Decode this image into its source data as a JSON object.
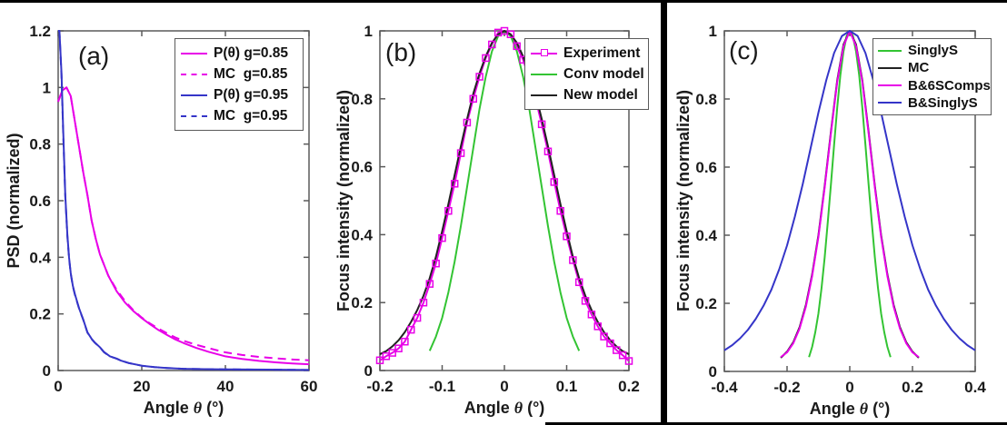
{
  "figure": {
    "background": "#ffffff",
    "axis_color": "#5a5a5a",
    "text_color": "#1a1a1a",
    "divider_color": "#000000",
    "colors": {
      "magenta": "#e800e8",
      "blue": "#3535c8",
      "green": "#33c433",
      "black_curve": "#222222"
    }
  },
  "chart_data": [
    {
      "id": "a",
      "type": "line",
      "panel_label": "(a)",
      "xlabel": "Angle θ (°)",
      "xlabel_prefix": "Angle ",
      "xlabel_symbol": "θ",
      "xlabel_suffix": " (°)",
      "ylabel": "PSD (normalized)",
      "xlim": [
        0,
        60
      ],
      "ylim": [
        0,
        1.2
      ],
      "xticks": [
        0,
        20,
        40,
        60
      ],
      "xtick_labels": [
        "0",
        "20",
        "40",
        "60"
      ],
      "yticks": [
        0,
        0.2,
        0.4,
        0.6,
        0.8,
        1,
        1.2
      ],
      "ytick_labels": [
        "0",
        "0.2",
        "0.4",
        "0.6",
        "0.8",
        "1",
        "1.2"
      ],
      "grid": false,
      "legend_position": "top-right-inside",
      "series": [
        {
          "name": "P(θ) g=0.85",
          "color": "#e800e8",
          "dash": "solid",
          "marker": "none",
          "x": [
            0,
            1,
            2,
            3,
            4,
            5,
            6,
            7,
            8,
            9,
            10,
            12,
            14,
            16,
            18,
            20,
            22,
            24,
            26,
            28,
            30,
            33,
            36,
            40,
            44,
            48,
            52,
            56,
            60
          ],
          "y": [
            0.95,
            0.99,
            1.0,
            0.97,
            0.88,
            0.79,
            0.7,
            0.62,
            0.53,
            0.465,
            0.41,
            0.335,
            0.28,
            0.24,
            0.21,
            0.185,
            0.163,
            0.143,
            0.126,
            0.11,
            0.097,
            0.08,
            0.066,
            0.05,
            0.041,
            0.034,
            0.029,
            0.025,
            0.022
          ]
        },
        {
          "name": "MC  g=0.85",
          "color": "#e800e8",
          "dash": "dashed",
          "marker": "none",
          "x": [
            0,
            1,
            2,
            3,
            4,
            5,
            6,
            7,
            8,
            9,
            10,
            12,
            14,
            16,
            18,
            20,
            22,
            24,
            26,
            28,
            30,
            33,
            36,
            40,
            44,
            48,
            52,
            56,
            60
          ],
          "y": [
            0.95,
            0.99,
            1.0,
            0.97,
            0.88,
            0.79,
            0.7,
            0.62,
            0.53,
            0.465,
            0.41,
            0.335,
            0.285,
            0.245,
            0.213,
            0.187,
            0.166,
            0.148,
            0.132,
            0.117,
            0.105,
            0.091,
            0.079,
            0.064,
            0.055,
            0.048,
            0.043,
            0.039,
            0.036
          ]
        },
        {
          "name": "P(θ) g=0.95",
          "color": "#3535c8",
          "dash": "solid",
          "marker": "none",
          "x": [
            0,
            0.3,
            0.8,
            1.2,
            1.7,
            2.2,
            2.6,
            3,
            3.5,
            4,
            4.5,
            5,
            5.5,
            6,
            7,
            8,
            8.7,
            10,
            11,
            12.4,
            14,
            15,
            17,
            20,
            23,
            26,
            30,
            35,
            40,
            50,
            60
          ],
          "y": [
            1.2,
            1.2,
            1.05,
            0.85,
            0.62,
            0.48,
            0.4,
            0.345,
            0.3,
            0.27,
            0.245,
            0.22,
            0.2,
            0.18,
            0.135,
            0.112,
            0.1,
            0.082,
            0.065,
            0.05,
            0.042,
            0.035,
            0.026,
            0.017,
            0.012,
            0.009,
            0.006,
            0.005,
            0.004,
            0.003,
            0.002
          ]
        },
        {
          "name": "MC  g=0.95",
          "color": "#3535c8",
          "dash": "dashed",
          "marker": "none",
          "x": [
            0,
            0.3,
            0.8,
            1.2,
            1.7,
            2.2,
            2.6,
            3,
            3.5,
            4,
            4.5,
            5,
            5.5,
            6,
            7,
            8,
            8.7,
            10,
            11,
            12.4,
            14,
            15,
            17,
            20,
            23,
            26,
            30,
            35,
            40,
            50,
            60
          ],
          "y": [
            1.2,
            1.2,
            1.04,
            0.84,
            0.615,
            0.475,
            0.398,
            0.343,
            0.298,
            0.268,
            0.243,
            0.219,
            0.199,
            0.179,
            0.134,
            0.111,
            0.099,
            0.081,
            0.064,
            0.05,
            0.042,
            0.035,
            0.026,
            0.017,
            0.012,
            0.009,
            0.006,
            0.005,
            0.004,
            0.003,
            0.002
          ]
        }
      ]
    },
    {
      "id": "b",
      "type": "line",
      "panel_label": "(b)",
      "xlabel": "Angle θ (°)",
      "xlabel_prefix": "Angle ",
      "xlabel_symbol": "θ",
      "xlabel_suffix": " (°)",
      "ylabel": "Focus intensity (normalized)",
      "xlim": [
        -0.2,
        0.2
      ],
      "ylim": [
        0,
        1
      ],
      "xticks": [
        -0.2,
        -0.1,
        0,
        0.1,
        0.2
      ],
      "xtick_labels": [
        "-0.2",
        "-0.1",
        "0",
        "0.1",
        "0.2"
      ],
      "yticks": [
        0,
        0.2,
        0.4,
        0.6,
        0.8,
        1
      ],
      "ytick_labels": [
        "0",
        "0.2",
        "0.4",
        "0.6",
        "0.8",
        "1"
      ],
      "grid": false,
      "legend_position": "top-right-inside",
      "series": [
        {
          "name": "Experiment",
          "color": "#e800e8",
          "dash": "solid",
          "marker": "square",
          "x": [
            -0.2,
            -0.19,
            -0.18,
            -0.17,
            -0.16,
            -0.15,
            -0.14,
            -0.13,
            -0.12,
            -0.11,
            -0.1,
            -0.09,
            -0.08,
            -0.07,
            -0.06,
            -0.05,
            -0.04,
            -0.03,
            -0.02,
            -0.01,
            0,
            0.01,
            0.02,
            0.03,
            0.04,
            0.05,
            0.06,
            0.07,
            0.08,
            0.09,
            0.1,
            0.11,
            0.12,
            0.13,
            0.14,
            0.15,
            0.16,
            0.17,
            0.18,
            0.19,
            0.2
          ],
          "y": [
            0.03,
            0.042,
            0.052,
            0.065,
            0.085,
            0.12,
            0.155,
            0.2,
            0.255,
            0.315,
            0.39,
            0.47,
            0.55,
            0.64,
            0.73,
            0.8,
            0.865,
            0.92,
            0.96,
            0.995,
            1.0,
            0.99,
            0.955,
            0.915,
            0.86,
            0.8,
            0.725,
            0.645,
            0.555,
            0.47,
            0.395,
            0.325,
            0.26,
            0.205,
            0.165,
            0.13,
            0.1,
            0.08,
            0.06,
            0.045,
            0.028
          ]
        },
        {
          "name": "Conv model",
          "color": "#33c433",
          "dash": "solid",
          "marker": "none",
          "x": [
            -0.12,
            -0.11,
            -0.1,
            -0.09,
            -0.08,
            -0.07,
            -0.06,
            -0.05,
            -0.04,
            -0.03,
            -0.02,
            -0.01,
            0,
            0.01,
            0.02,
            0.03,
            0.04,
            0.05,
            0.06,
            0.07,
            0.08,
            0.09,
            0.1,
            0.11,
            0.12
          ],
          "y": [
            0.058,
            0.1,
            0.155,
            0.23,
            0.32,
            0.425,
            0.54,
            0.655,
            0.77,
            0.865,
            0.94,
            0.985,
            1.0,
            0.985,
            0.94,
            0.865,
            0.77,
            0.655,
            0.54,
            0.425,
            0.32,
            0.23,
            0.155,
            0.1,
            0.058
          ]
        },
        {
          "name": "New model",
          "color": "#222222",
          "dash": "solid",
          "marker": "none",
          "x": [
            -0.2,
            -0.19,
            -0.18,
            -0.17,
            -0.16,
            -0.15,
            -0.14,
            -0.13,
            -0.12,
            -0.11,
            -0.1,
            -0.09,
            -0.08,
            -0.07,
            -0.06,
            -0.05,
            -0.04,
            -0.03,
            -0.02,
            -0.01,
            0,
            0.01,
            0.02,
            0.03,
            0.04,
            0.05,
            0.06,
            0.07,
            0.08,
            0.09,
            0.1,
            0.11,
            0.12,
            0.13,
            0.14,
            0.15,
            0.16,
            0.17,
            0.18,
            0.19,
            0.2
          ],
          "y": [
            0.048,
            0.057,
            0.071,
            0.089,
            0.113,
            0.143,
            0.178,
            0.22,
            0.272,
            0.335,
            0.41,
            0.49,
            0.575,
            0.66,
            0.74,
            0.815,
            0.875,
            0.925,
            0.965,
            0.99,
            1.0,
            0.99,
            0.965,
            0.925,
            0.875,
            0.815,
            0.74,
            0.66,
            0.575,
            0.49,
            0.41,
            0.335,
            0.272,
            0.22,
            0.178,
            0.143,
            0.113,
            0.089,
            0.071,
            0.057,
            0.048
          ]
        }
      ]
    },
    {
      "id": "c",
      "type": "line",
      "panel_label": "(c)",
      "xlabel": "Angle θ (°)",
      "xlabel_prefix": "Angle ",
      "xlabel_symbol": "θ",
      "xlabel_suffix": " (°)",
      "ylabel": "Focus intensity (normalized)",
      "xlim": [
        -0.4,
        0.4
      ],
      "ylim": [
        0,
        1
      ],
      "xticks": [
        -0.4,
        -0.2,
        0,
        0.2,
        0.4
      ],
      "xtick_labels": [
        "-0.4",
        "-0.2",
        "0",
        "0.2",
        "0.4"
      ],
      "yticks": [
        0,
        0.2,
        0.4,
        0.6,
        0.8,
        1
      ],
      "ytick_labels": [
        "0",
        "0.2",
        "0.4",
        "0.6",
        "0.8",
        "1"
      ],
      "grid": false,
      "legend_position": "top-right-inside",
      "series": [
        {
          "name": "SinglyS",
          "color": "#33c433",
          "dash": "solid",
          "marker": "none",
          "x": [
            -0.13,
            -0.12,
            -0.11,
            -0.1,
            -0.09,
            -0.08,
            -0.07,
            -0.06,
            -0.05,
            -0.04,
            -0.03,
            -0.02,
            -0.01,
            0,
            0.01,
            0.02,
            0.03,
            0.04,
            0.05,
            0.06,
            0.07,
            0.08,
            0.09,
            0.1,
            0.11,
            0.12,
            0.13
          ],
          "y": [
            0.042,
            0.072,
            0.115,
            0.17,
            0.245,
            0.335,
            0.44,
            0.55,
            0.665,
            0.775,
            0.87,
            0.94,
            0.985,
            1.0,
            0.985,
            0.94,
            0.87,
            0.775,
            0.665,
            0.55,
            0.44,
            0.335,
            0.245,
            0.17,
            0.115,
            0.072,
            0.042
          ]
        },
        {
          "name": "MC",
          "color": "#222222",
          "dash": "solid",
          "marker": "none",
          "x": [
            -0.22,
            -0.2,
            -0.18,
            -0.16,
            -0.14,
            -0.12,
            -0.1,
            -0.08,
            -0.06,
            -0.04,
            -0.02,
            0,
            0.02,
            0.04,
            0.06,
            0.08,
            0.1,
            0.12,
            0.14,
            0.16,
            0.18,
            0.2,
            0.22
          ],
          "y": [
            0.04,
            0.058,
            0.086,
            0.13,
            0.195,
            0.285,
            0.4,
            0.545,
            0.705,
            0.855,
            0.96,
            1.0,
            0.96,
            0.855,
            0.705,
            0.545,
            0.4,
            0.285,
            0.195,
            0.13,
            0.086,
            0.058,
            0.04
          ]
        },
        {
          "name": "B&6SComps",
          "color": "#e800e8",
          "dash": "solid",
          "marker": "none",
          "x": [
            -0.22,
            -0.2,
            -0.18,
            -0.16,
            -0.14,
            -0.12,
            -0.1,
            -0.08,
            -0.06,
            -0.04,
            -0.02,
            0,
            0.02,
            0.04,
            0.06,
            0.08,
            0.1,
            0.12,
            0.14,
            0.16,
            0.18,
            0.2,
            0.22
          ],
          "y": [
            0.042,
            0.056,
            0.083,
            0.126,
            0.19,
            0.28,
            0.395,
            0.54,
            0.7,
            0.85,
            0.955,
            1.0,
            0.955,
            0.85,
            0.7,
            0.54,
            0.395,
            0.28,
            0.19,
            0.126,
            0.083,
            0.056,
            0.042
          ]
        },
        {
          "name": "B&SinglyS",
          "color": "#3535c8",
          "dash": "solid",
          "marker": "none",
          "x": [
            -0.4,
            -0.375,
            -0.35,
            -0.325,
            -0.3,
            -0.275,
            -0.25,
            -0.225,
            -0.2,
            -0.175,
            -0.15,
            -0.125,
            -0.1,
            -0.075,
            -0.05,
            -0.025,
            0,
            0.025,
            0.05,
            0.075,
            0.1,
            0.125,
            0.15,
            0.175,
            0.2,
            0.225,
            0.25,
            0.275,
            0.3,
            0.325,
            0.35,
            0.375,
            0.4
          ],
          "y": [
            0.062,
            0.077,
            0.097,
            0.122,
            0.154,
            0.193,
            0.24,
            0.3,
            0.37,
            0.455,
            0.55,
            0.655,
            0.76,
            0.855,
            0.935,
            0.985,
            1.0,
            0.985,
            0.935,
            0.855,
            0.76,
            0.655,
            0.55,
            0.455,
            0.37,
            0.3,
            0.24,
            0.193,
            0.154,
            0.122,
            0.097,
            0.077,
            0.062
          ]
        }
      ]
    }
  ]
}
